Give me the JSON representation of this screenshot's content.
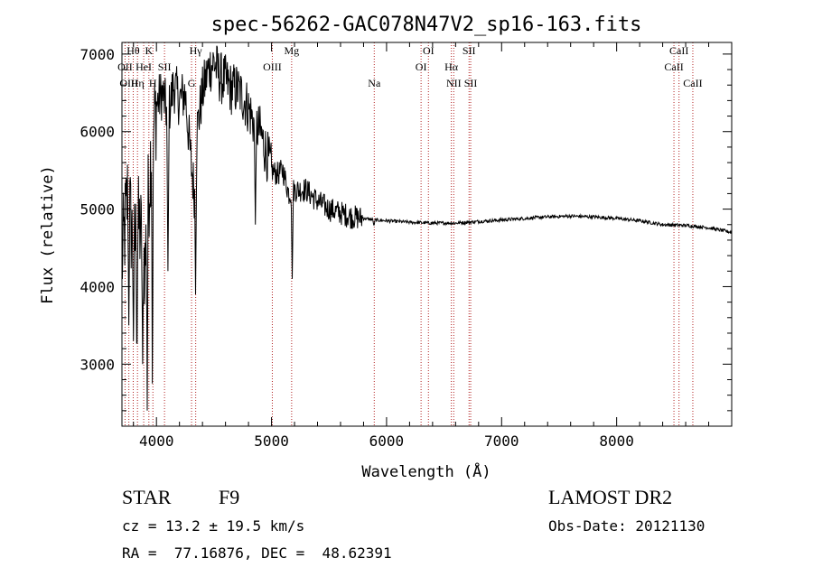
{
  "chart_data": {
    "type": "line",
    "title": "spec-56262-GAC078N47V2_sp16-163.fits",
    "xlabel": "Wavelength (Å)",
    "ylabel": "Flux (relative)",
    "xlim": [
      3700,
      9000
    ],
    "ylim": [
      2200,
      7150
    ],
    "xticks": [
      4000,
      5000,
      6000,
      7000,
      8000
    ],
    "yticks": [
      3000,
      4000,
      5000,
      6000,
      7000
    ],
    "grid": false,
    "series": [
      {
        "color": "#000000",
        "x": [
          3700,
          3750,
          3800,
          3850,
          3900,
          3950,
          4000,
          4050,
          4100,
          4150,
          4200,
          4250,
          4300,
          4330,
          4350,
          4400,
          4450,
          4500,
          4550,
          4600,
          4650,
          4700,
          4750,
          4800,
          4850,
          4900,
          4950,
          5000,
          5050,
          5100,
          5150,
          5200,
          5250,
          5300,
          5400,
          5500,
          5600,
          5700,
          5800,
          5900,
          6000,
          6200,
          6400,
          6600,
          6800,
          7000,
          7200,
          7400,
          7600,
          7800,
          8000,
          8200,
          8400,
          8600,
          8800,
          9000
        ],
        "y": [
          4300,
          5200,
          4500,
          4800,
          4300,
          5700,
          6350,
          6500,
          6200,
          6600,
          6400,
          6500,
          5600,
          5200,
          6000,
          6500,
          6800,
          6900,
          6700,
          6650,
          6550,
          6550,
          6450,
          6300,
          6100,
          6000,
          5750,
          5500,
          5450,
          5500,
          5200,
          5250,
          5250,
          5250,
          5100,
          5000,
          4950,
          4900,
          4880,
          4860,
          4850,
          4830,
          4820,
          4820,
          4840,
          4860,
          4880,
          4900,
          4910,
          4900,
          4880,
          4850,
          4800,
          4790,
          4760,
          4700
        ]
      }
    ],
    "absorption_dips": [
      {
        "x": 3760,
        "y": 3500
      },
      {
        "x": 3800,
        "y": 3300
      },
      {
        "x": 3830,
        "y": 2800
      },
      {
        "x": 3880,
        "y": 3000
      },
      {
        "x": 3920,
        "y": 2400
      },
      {
        "x": 3965,
        "y": 2300
      },
      {
        "x": 4100,
        "y": 4200
      },
      {
        "x": 4340,
        "y": 3900
      },
      {
        "x": 4860,
        "y": 4800
      },
      {
        "x": 5180,
        "y": 4100
      },
      {
        "x": 5890,
        "y": 4780
      }
    ],
    "lines": [
      {
        "label": "Hθ",
        "x": 3798,
        "row": 0
      },
      {
        "label": "K",
        "x": 3934,
        "row": 0
      },
      {
        "label": "OII",
        "x": 3727,
        "row": 1
      },
      {
        "label": "HeI",
        "x": 3889,
        "row": 1
      },
      {
        "label": "SII",
        "x": 4070,
        "row": 1
      },
      {
        "label": "OIII",
        "x": 3760,
        "row": 2
      },
      {
        "label": "Hη",
        "x": 3835,
        "row": 2
      },
      {
        "label": "H",
        "x": 3969,
        "row": 2
      },
      {
        "label": "Hγ",
        "x": 4341,
        "row": 0
      },
      {
        "label": "G",
        "x": 4305,
        "row": 2
      },
      {
        "label": "Mg",
        "x": 5175,
        "row": 0
      },
      {
        "label": "OIII",
        "x": 5007,
        "row": 1
      },
      {
        "label": "Na",
        "x": 5893,
        "row": 2
      },
      {
        "label": "OI",
        "x": 6364,
        "row": 0
      },
      {
        "label": "OI",
        "x": 6300,
        "row": 1
      },
      {
        "label": "Hα",
        "x": 6563,
        "row": 1
      },
      {
        "label": "NII",
        "x": 6584,
        "row": 2
      },
      {
        "label": "SII",
        "x": 6717,
        "row": 0
      },
      {
        "label": "SII",
        "x": 6731,
        "row": 2
      },
      {
        "label": "CaII",
        "x": 8542,
        "row": 0
      },
      {
        "label": "CaII",
        "x": 8498,
        "row": 1
      },
      {
        "label": "CaII",
        "x": 8662,
        "row": 2
      }
    ]
  },
  "info": {
    "object_type": "STAR",
    "subclass": "F9",
    "survey": "LAMOST DR2",
    "cz": "cz = 13.2 ± 19.5 km/s",
    "obs_date": "Obs-Date: 20121130",
    "coords": "RA =  77.16876, DEC =  48.62391"
  },
  "colors": {
    "spectrum": "#000000",
    "line_marker": "#b22222",
    "axis": "#000000"
  }
}
